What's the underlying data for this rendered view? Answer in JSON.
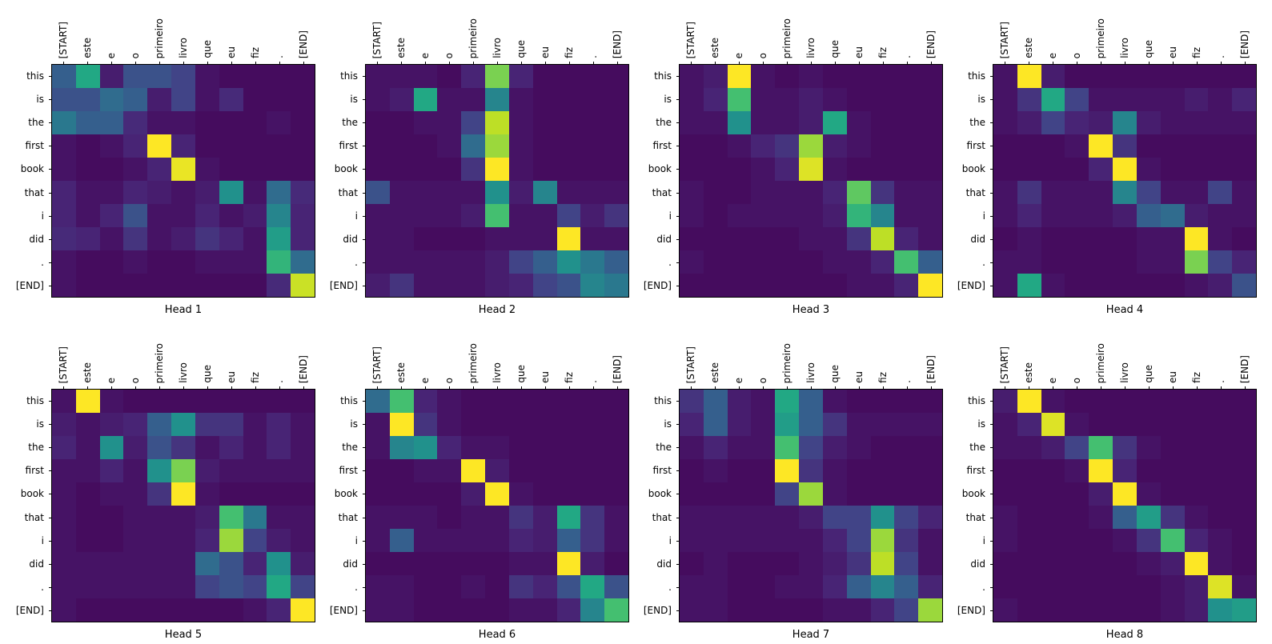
{
  "figure": {
    "background_color": "#ffffff",
    "axis_color": "#000000",
    "colormap": "viridis",
    "colormap_stops": [
      [
        0.0,
        "#440154"
      ],
      [
        0.1,
        "#482475"
      ],
      [
        0.2,
        "#414487"
      ],
      [
        0.3,
        "#355f8d"
      ],
      [
        0.4,
        "#2a788e"
      ],
      [
        0.5,
        "#21918c"
      ],
      [
        0.6,
        "#22a884"
      ],
      [
        0.7,
        "#44bf70"
      ],
      [
        0.8,
        "#7ad151"
      ],
      [
        0.9,
        "#bddf26"
      ],
      [
        1.0,
        "#fde725"
      ]
    ]
  },
  "chart_data": [
    {
      "type": "heatmap",
      "title": "Head 1",
      "x_labels": [
        "[START]",
        "este",
        "e",
        "o",
        "primeiro",
        "livro",
        "que",
        "eu",
        "fiz",
        ".",
        "[END]"
      ],
      "y_labels": [
        "this",
        "is",
        "the",
        "first",
        "book",
        "that",
        "i",
        "did",
        ".",
        "[END]"
      ],
      "values": [
        [
          0.3,
          0.6,
          0.08,
          0.25,
          0.25,
          0.2,
          0.05,
          0.03,
          0.03,
          0.03,
          0.03
        ],
        [
          0.25,
          0.25,
          0.35,
          0.3,
          0.08,
          0.2,
          0.05,
          0.12,
          0.03,
          0.03,
          0.03
        ],
        [
          0.4,
          0.3,
          0.3,
          0.12,
          0.05,
          0.05,
          0.03,
          0.03,
          0.03,
          0.05,
          0.03
        ],
        [
          0.05,
          0.03,
          0.05,
          0.1,
          1.0,
          0.1,
          0.03,
          0.03,
          0.03,
          0.03,
          0.03
        ],
        [
          0.05,
          0.03,
          0.03,
          0.05,
          0.1,
          0.97,
          0.05,
          0.03,
          0.03,
          0.03,
          0.03
        ],
        [
          0.1,
          0.05,
          0.05,
          0.1,
          0.08,
          0.05,
          0.08,
          0.5,
          0.05,
          0.35,
          0.12
        ],
        [
          0.1,
          0.05,
          0.1,
          0.25,
          0.05,
          0.05,
          0.1,
          0.05,
          0.08,
          0.45,
          0.1
        ],
        [
          0.12,
          0.1,
          0.05,
          0.15,
          0.05,
          0.08,
          0.15,
          0.1,
          0.05,
          0.55,
          0.1
        ],
        [
          0.05,
          0.03,
          0.03,
          0.05,
          0.03,
          0.03,
          0.05,
          0.05,
          0.05,
          0.65,
          0.35
        ],
        [
          0.05,
          0.03,
          0.03,
          0.03,
          0.03,
          0.03,
          0.03,
          0.03,
          0.03,
          0.12,
          0.92
        ]
      ]
    },
    {
      "type": "heatmap",
      "title": "Head 2",
      "x_labels": [
        "[START]",
        "este",
        "e",
        "o",
        "primeiro",
        "livro",
        "que",
        "eu",
        "fiz",
        ".",
        "[END]"
      ],
      "y_labels": [
        "this",
        "is",
        "the",
        "first",
        "book",
        "that",
        "i",
        "did",
        ".",
        "[END]"
      ],
      "values": [
        [
          0.05,
          0.05,
          0.05,
          0.03,
          0.1,
          0.8,
          0.1,
          0.03,
          0.03,
          0.03,
          0.03
        ],
        [
          0.05,
          0.08,
          0.6,
          0.05,
          0.05,
          0.45,
          0.05,
          0.03,
          0.03,
          0.03,
          0.03
        ],
        [
          0.03,
          0.03,
          0.05,
          0.05,
          0.2,
          0.9,
          0.05,
          0.03,
          0.03,
          0.03,
          0.03
        ],
        [
          0.03,
          0.03,
          0.03,
          0.05,
          0.35,
          0.85,
          0.05,
          0.03,
          0.03,
          0.03,
          0.03
        ],
        [
          0.03,
          0.03,
          0.03,
          0.03,
          0.15,
          1.0,
          0.05,
          0.03,
          0.03,
          0.03,
          0.03
        ],
        [
          0.25,
          0.05,
          0.05,
          0.05,
          0.05,
          0.5,
          0.08,
          0.45,
          0.05,
          0.05,
          0.05
        ],
        [
          0.05,
          0.05,
          0.05,
          0.05,
          0.08,
          0.7,
          0.05,
          0.05,
          0.2,
          0.08,
          0.15
        ],
        [
          0.05,
          0.05,
          0.03,
          0.03,
          0.03,
          0.05,
          0.05,
          0.05,
          1.0,
          0.05,
          0.05
        ],
        [
          0.05,
          0.05,
          0.05,
          0.05,
          0.05,
          0.08,
          0.2,
          0.3,
          0.5,
          0.4,
          0.3
        ],
        [
          0.08,
          0.15,
          0.05,
          0.05,
          0.05,
          0.08,
          0.1,
          0.2,
          0.25,
          0.45,
          0.4
        ]
      ]
    },
    {
      "type": "heatmap",
      "title": "Head 3",
      "x_labels": [
        "[START]",
        "este",
        "e",
        "o",
        "primeiro",
        "livro",
        "que",
        "eu",
        "fiz",
        ".",
        "[END]"
      ],
      "y_labels": [
        "this",
        "is",
        "the",
        "first",
        "book",
        "that",
        "i",
        "did",
        ".",
        "[END]"
      ],
      "values": [
        [
          0.05,
          0.08,
          1.0,
          0.05,
          0.03,
          0.05,
          0.03,
          0.03,
          0.03,
          0.03,
          0.03
        ],
        [
          0.05,
          0.1,
          0.7,
          0.05,
          0.05,
          0.08,
          0.05,
          0.03,
          0.03,
          0.03,
          0.03
        ],
        [
          0.05,
          0.05,
          0.5,
          0.05,
          0.05,
          0.08,
          0.6,
          0.05,
          0.03,
          0.03,
          0.03
        ],
        [
          0.03,
          0.03,
          0.05,
          0.1,
          0.15,
          0.85,
          0.08,
          0.05,
          0.03,
          0.03,
          0.03
        ],
        [
          0.03,
          0.03,
          0.03,
          0.05,
          0.1,
          0.95,
          0.05,
          0.03,
          0.03,
          0.03,
          0.03
        ],
        [
          0.05,
          0.03,
          0.03,
          0.05,
          0.05,
          0.05,
          0.1,
          0.75,
          0.15,
          0.05,
          0.05
        ],
        [
          0.05,
          0.03,
          0.05,
          0.05,
          0.05,
          0.05,
          0.08,
          0.65,
          0.45,
          0.05,
          0.05
        ],
        [
          0.03,
          0.03,
          0.03,
          0.03,
          0.03,
          0.05,
          0.05,
          0.15,
          0.9,
          0.1,
          0.05
        ],
        [
          0.05,
          0.03,
          0.03,
          0.03,
          0.03,
          0.03,
          0.05,
          0.05,
          0.1,
          0.7,
          0.3
        ],
        [
          0.03,
          0.03,
          0.03,
          0.03,
          0.03,
          0.03,
          0.03,
          0.05,
          0.05,
          0.1,
          1.0
        ]
      ]
    },
    {
      "type": "heatmap",
      "title": "Head 4",
      "x_labels": [
        "[START]",
        "este",
        "e",
        "o",
        "primeiro",
        "livro",
        "que",
        "eu",
        "fiz",
        ".",
        "[END]"
      ],
      "y_labels": [
        "this",
        "is",
        "the",
        "first",
        "book",
        "that",
        "i",
        "did",
        ".",
        "[END]"
      ],
      "values": [
        [
          0.05,
          1.0,
          0.08,
          0.03,
          0.03,
          0.03,
          0.03,
          0.03,
          0.03,
          0.03,
          0.03
        ],
        [
          0.05,
          0.15,
          0.6,
          0.2,
          0.05,
          0.05,
          0.05,
          0.05,
          0.08,
          0.05,
          0.1
        ],
        [
          0.05,
          0.08,
          0.2,
          0.1,
          0.08,
          0.45,
          0.08,
          0.05,
          0.05,
          0.05,
          0.05
        ],
        [
          0.03,
          0.03,
          0.03,
          0.05,
          1.0,
          0.15,
          0.03,
          0.03,
          0.03,
          0.03,
          0.03
        ],
        [
          0.03,
          0.03,
          0.03,
          0.03,
          0.1,
          1.0,
          0.05,
          0.03,
          0.03,
          0.03,
          0.03
        ],
        [
          0.05,
          0.15,
          0.05,
          0.05,
          0.05,
          0.45,
          0.2,
          0.05,
          0.05,
          0.2,
          0.05
        ],
        [
          0.05,
          0.1,
          0.05,
          0.05,
          0.05,
          0.08,
          0.3,
          0.35,
          0.08,
          0.05,
          0.05
        ],
        [
          0.03,
          0.05,
          0.03,
          0.03,
          0.03,
          0.03,
          0.05,
          0.05,
          1.0,
          0.05,
          0.03
        ],
        [
          0.05,
          0.05,
          0.03,
          0.03,
          0.03,
          0.03,
          0.05,
          0.05,
          0.8,
          0.2,
          0.1
        ],
        [
          0.05,
          0.6,
          0.05,
          0.03,
          0.03,
          0.03,
          0.03,
          0.03,
          0.05,
          0.08,
          0.25
        ]
      ]
    },
    {
      "type": "heatmap",
      "title": "Head 5",
      "x_labels": [
        "[START]",
        "este",
        "e",
        "o",
        "primeiro",
        "livro",
        "que",
        "eu",
        "fiz",
        ".",
        "[END]"
      ],
      "y_labels": [
        "this",
        "is",
        "the",
        "first",
        "book",
        "that",
        "i",
        "did",
        ".",
        "[END]"
      ],
      "values": [
        [
          0.05,
          1.0,
          0.05,
          0.03,
          0.03,
          0.03,
          0.03,
          0.03,
          0.03,
          0.03,
          0.03
        ],
        [
          0.08,
          0.05,
          0.08,
          0.1,
          0.3,
          0.5,
          0.15,
          0.15,
          0.05,
          0.1,
          0.05
        ],
        [
          0.1,
          0.05,
          0.5,
          0.08,
          0.25,
          0.15,
          0.05,
          0.1,
          0.05,
          0.1,
          0.05
        ],
        [
          0.05,
          0.05,
          0.1,
          0.05,
          0.5,
          0.8,
          0.08,
          0.05,
          0.05,
          0.05,
          0.05
        ],
        [
          0.05,
          0.03,
          0.05,
          0.05,
          0.15,
          1.0,
          0.05,
          0.03,
          0.03,
          0.03,
          0.03
        ],
        [
          0.05,
          0.03,
          0.03,
          0.05,
          0.05,
          0.05,
          0.08,
          0.7,
          0.4,
          0.05,
          0.05
        ],
        [
          0.05,
          0.03,
          0.03,
          0.05,
          0.05,
          0.05,
          0.1,
          0.85,
          0.2,
          0.08,
          0.05
        ],
        [
          0.05,
          0.05,
          0.05,
          0.05,
          0.05,
          0.05,
          0.35,
          0.25,
          0.1,
          0.5,
          0.08
        ],
        [
          0.05,
          0.05,
          0.05,
          0.05,
          0.05,
          0.05,
          0.2,
          0.25,
          0.2,
          0.6,
          0.2
        ],
        [
          0.05,
          0.03,
          0.03,
          0.03,
          0.03,
          0.03,
          0.03,
          0.03,
          0.05,
          0.1,
          1.0
        ]
      ]
    },
    {
      "type": "heatmap",
      "title": "Head 6",
      "x_labels": [
        "[START]",
        "este",
        "e",
        "o",
        "primeiro",
        "livro",
        "que",
        "eu",
        "fiz",
        ".",
        "[END]"
      ],
      "y_labels": [
        "this",
        "is",
        "the",
        "first",
        "book",
        "that",
        "i",
        "did",
        ".",
        "[END]"
      ],
      "values": [
        [
          0.35,
          0.7,
          0.1,
          0.05,
          0.03,
          0.03,
          0.03,
          0.03,
          0.03,
          0.03,
          0.03
        ],
        [
          0.05,
          1.0,
          0.15,
          0.05,
          0.03,
          0.03,
          0.03,
          0.03,
          0.03,
          0.03,
          0.03
        ],
        [
          0.05,
          0.45,
          0.5,
          0.1,
          0.05,
          0.05,
          0.03,
          0.03,
          0.03,
          0.03,
          0.03
        ],
        [
          0.03,
          0.03,
          0.05,
          0.05,
          1.0,
          0.08,
          0.03,
          0.03,
          0.03,
          0.03,
          0.03
        ],
        [
          0.03,
          0.03,
          0.03,
          0.03,
          0.08,
          1.0,
          0.05,
          0.03,
          0.03,
          0.03,
          0.03
        ],
        [
          0.05,
          0.05,
          0.05,
          0.03,
          0.05,
          0.05,
          0.15,
          0.08,
          0.6,
          0.15,
          0.05
        ],
        [
          0.05,
          0.3,
          0.05,
          0.05,
          0.05,
          0.05,
          0.1,
          0.08,
          0.3,
          0.15,
          0.05
        ],
        [
          0.03,
          0.03,
          0.03,
          0.03,
          0.03,
          0.03,
          0.05,
          0.05,
          1.0,
          0.08,
          0.03
        ],
        [
          0.05,
          0.05,
          0.03,
          0.03,
          0.05,
          0.03,
          0.15,
          0.1,
          0.25,
          0.6,
          0.25
        ],
        [
          0.05,
          0.05,
          0.03,
          0.03,
          0.03,
          0.03,
          0.05,
          0.05,
          0.1,
          0.45,
          0.7
        ]
      ]
    },
    {
      "type": "heatmap",
      "title": "Head 7",
      "x_labels": [
        "[START]",
        "este",
        "e",
        "o",
        "primeiro",
        "livro",
        "que",
        "eu",
        "fiz",
        ".",
        "[END]"
      ],
      "y_labels": [
        "this",
        "is",
        "the",
        "first",
        "book",
        "that",
        "i",
        "did",
        ".",
        "[END]"
      ],
      "values": [
        [
          0.15,
          0.3,
          0.08,
          0.05,
          0.6,
          0.3,
          0.05,
          0.03,
          0.03,
          0.03,
          0.03
        ],
        [
          0.1,
          0.3,
          0.08,
          0.05,
          0.55,
          0.3,
          0.15,
          0.05,
          0.05,
          0.05,
          0.05
        ],
        [
          0.05,
          0.1,
          0.05,
          0.05,
          0.7,
          0.2,
          0.08,
          0.05,
          0.03,
          0.03,
          0.03
        ],
        [
          0.03,
          0.05,
          0.03,
          0.03,
          1.0,
          0.15,
          0.05,
          0.03,
          0.03,
          0.03,
          0.03
        ],
        [
          0.03,
          0.03,
          0.03,
          0.03,
          0.2,
          0.85,
          0.05,
          0.03,
          0.03,
          0.03,
          0.03
        ],
        [
          0.05,
          0.05,
          0.05,
          0.05,
          0.05,
          0.08,
          0.2,
          0.2,
          0.5,
          0.2,
          0.1
        ],
        [
          0.05,
          0.05,
          0.05,
          0.05,
          0.05,
          0.05,
          0.1,
          0.2,
          0.85,
          0.15,
          0.05
        ],
        [
          0.03,
          0.05,
          0.03,
          0.03,
          0.03,
          0.05,
          0.08,
          0.15,
          0.9,
          0.2,
          0.05
        ],
        [
          0.05,
          0.05,
          0.03,
          0.03,
          0.05,
          0.05,
          0.1,
          0.3,
          0.45,
          0.3,
          0.1
        ],
        [
          0.05,
          0.05,
          0.03,
          0.03,
          0.03,
          0.03,
          0.05,
          0.05,
          0.1,
          0.2,
          0.85
        ]
      ]
    },
    {
      "type": "heatmap",
      "title": "Head 8",
      "x_labels": [
        "[START]",
        "este",
        "e",
        "o",
        "primeiro",
        "livro",
        "que",
        "eu",
        "fiz",
        ".",
        "[END]"
      ],
      "y_labels": [
        "this",
        "is",
        "the",
        "first",
        "book",
        "that",
        "i",
        "did",
        ".",
        "[END]"
      ],
      "values": [
        [
          0.08,
          1.0,
          0.05,
          0.03,
          0.03,
          0.03,
          0.03,
          0.03,
          0.03,
          0.03,
          0.03
        ],
        [
          0.05,
          0.1,
          0.95,
          0.05,
          0.03,
          0.03,
          0.03,
          0.03,
          0.03,
          0.03,
          0.03
        ],
        [
          0.05,
          0.05,
          0.08,
          0.2,
          0.7,
          0.15,
          0.05,
          0.03,
          0.03,
          0.03,
          0.03
        ],
        [
          0.03,
          0.03,
          0.03,
          0.05,
          1.0,
          0.1,
          0.03,
          0.03,
          0.03,
          0.03,
          0.03
        ],
        [
          0.03,
          0.03,
          0.03,
          0.03,
          0.08,
          1.0,
          0.05,
          0.03,
          0.03,
          0.03,
          0.03
        ],
        [
          0.05,
          0.03,
          0.03,
          0.03,
          0.05,
          0.3,
          0.55,
          0.15,
          0.05,
          0.03,
          0.03
        ],
        [
          0.05,
          0.03,
          0.03,
          0.03,
          0.03,
          0.05,
          0.15,
          0.7,
          0.1,
          0.05,
          0.03
        ],
        [
          0.03,
          0.03,
          0.03,
          0.03,
          0.03,
          0.03,
          0.05,
          0.08,
          1.0,
          0.05,
          0.03
        ],
        [
          0.03,
          0.03,
          0.03,
          0.03,
          0.03,
          0.03,
          0.03,
          0.05,
          0.08,
          0.95,
          0.05
        ],
        [
          0.05,
          0.03,
          0.03,
          0.03,
          0.03,
          0.03,
          0.03,
          0.05,
          0.08,
          0.5,
          0.55
        ]
      ]
    }
  ]
}
